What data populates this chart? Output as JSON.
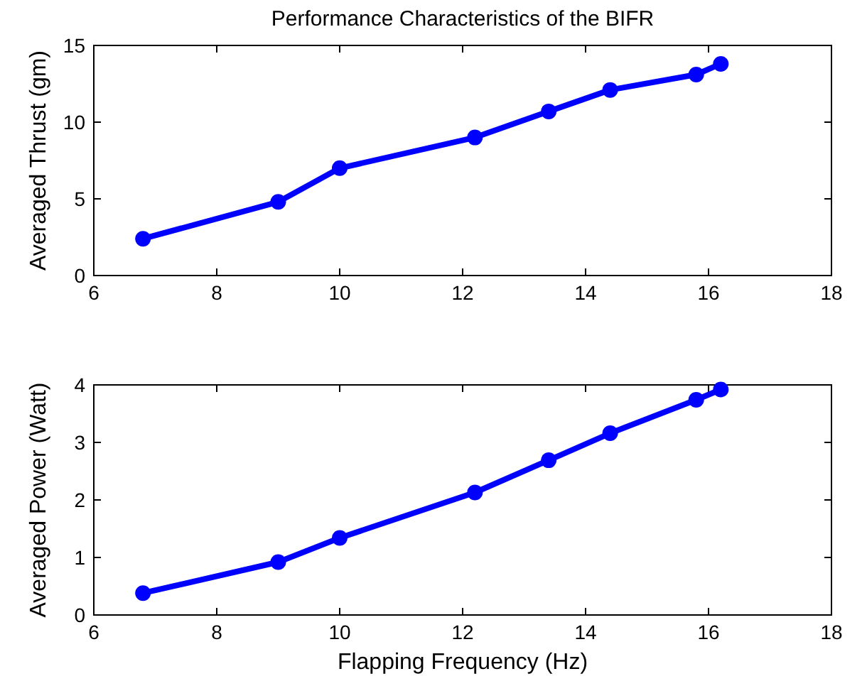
{
  "chart_data": [
    {
      "type": "line",
      "title": "Performance Characteristics of the BIFR",
      "ylabel": "Averaged Thrust (gm)",
      "x": [
        6.8,
        9.0,
        10.0,
        12.2,
        13.4,
        14.4,
        15.8,
        16.2
      ],
      "series": [
        {
          "color": "#0000ff",
          "values": [
            2.4,
            4.8,
            7.0,
            9.0,
            10.7,
            12.1,
            13.1,
            13.8
          ]
        }
      ],
      "xlim": [
        6,
        18
      ],
      "xticks": [
        6,
        8,
        10,
        12,
        14,
        16,
        18
      ],
      "ylim": [
        0,
        15
      ],
      "yticks": [
        0,
        5,
        10,
        15
      ],
      "marker": "circle",
      "line_style": "solid",
      "grid": false
    },
    {
      "type": "line",
      "xlabel": "Flapping Frequency (Hz)",
      "ylabel": "Averaged Power (Watt)",
      "x": [
        6.8,
        9.0,
        10.0,
        12.2,
        13.4,
        14.4,
        15.8,
        16.2
      ],
      "series": [
        {
          "color": "#0000ff",
          "values": [
            0.38,
            0.92,
            1.34,
            2.13,
            2.69,
            3.16,
            3.74,
            3.92
          ]
        }
      ],
      "xlim": [
        6,
        18
      ],
      "xticks": [
        6,
        8,
        10,
        12,
        14,
        16,
        18
      ],
      "ylim": [
        0,
        4
      ],
      "yticks": [
        0,
        1,
        2,
        3,
        4
      ],
      "marker": "circle",
      "line_style": "solid",
      "grid": false
    }
  ]
}
